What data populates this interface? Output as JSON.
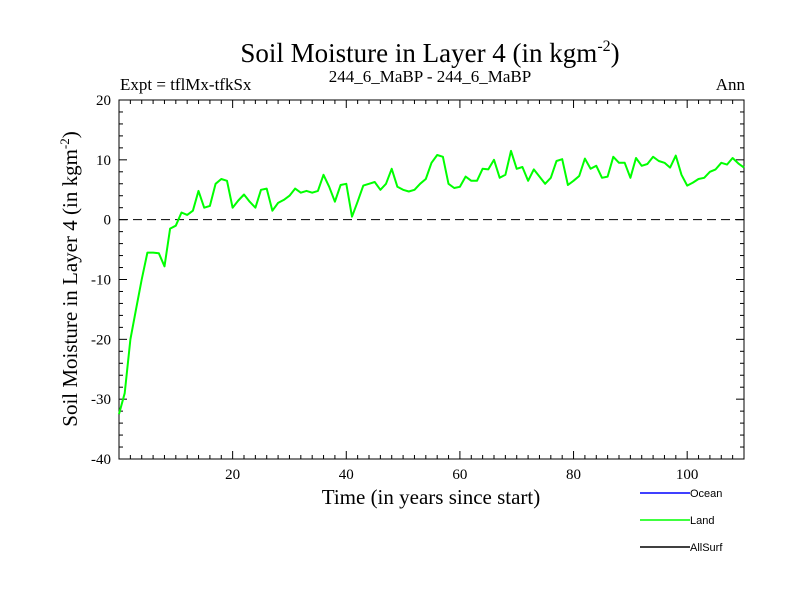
{
  "header": {
    "title_main": "Soil Moisture in Layer 4 (in kgm",
    "title_sup": "-2",
    "title_close": ")",
    "expt": "Expt = tflMx-tfkSx",
    "subtitle": "244_6_MaBP - 244_6_MaBP",
    "period": "Ann"
  },
  "axes": {
    "xlabel": "Time (in years since start)",
    "ylabel_main": "Soil Moisture in Layer 4 (in kgm",
    "ylabel_sup": "-2",
    "ylabel_close": ")"
  },
  "legend": {
    "ocean": "Ocean",
    "land": "Land",
    "allsurf": "AllSurf"
  },
  "colors": {
    "ocean": "#0000ff",
    "land": "#00ff00",
    "allsurf": "#000000"
  },
  "chart_data": {
    "type": "line",
    "title": "Soil Moisture in Layer 4 (in kgm-2)",
    "xlabel": "Time (in years since start)",
    "ylabel": "Soil Moisture in Layer 4 (in kgm-2)",
    "xlim": [
      0,
      110
    ],
    "ylim": [
      -40,
      20
    ],
    "xticks": [
      "20",
      "40",
      "60",
      "80",
      "100"
    ],
    "xtick_values": [
      20,
      40,
      60,
      80,
      100
    ],
    "yticks": [
      "20",
      "10",
      "0",
      "-10",
      "-20",
      "-30",
      "-40"
    ],
    "ytick_values": [
      20,
      10,
      0,
      -10,
      -20,
      -30,
      -40
    ],
    "reference_line": 0,
    "legend_position": "bottom-right, below plot",
    "series": [
      {
        "name": "Ocean",
        "values": []
      },
      {
        "name": "AllSurf",
        "values": []
      },
      {
        "name": "Land",
        "x": [
          0,
          1,
          2,
          3,
          4,
          5,
          6,
          7,
          8,
          9,
          10,
          11,
          12,
          13,
          14,
          15,
          16,
          17,
          18,
          19,
          20,
          21,
          22,
          23,
          24,
          25,
          26,
          27,
          28,
          29,
          30,
          31,
          32,
          33,
          34,
          35,
          36,
          37,
          38,
          39,
          40,
          41,
          42,
          43,
          44,
          45,
          46,
          47,
          48,
          49,
          50,
          51,
          52,
          53,
          54,
          55,
          56,
          57,
          58,
          59,
          60,
          61,
          62,
          63,
          64,
          65,
          66,
          67,
          68,
          69,
          70,
          71,
          72,
          73,
          74,
          75,
          76,
          77,
          78,
          79,
          80,
          81,
          82,
          83,
          84,
          85,
          86,
          87,
          88,
          89,
          90,
          91,
          92,
          93,
          94,
          95,
          96,
          97,
          98,
          99,
          100,
          101,
          102,
          103,
          104,
          105,
          106,
          107,
          108,
          109,
          110
        ],
        "values": [
          -32.5,
          -29,
          -20,
          -15,
          -10,
          -5.5,
          -5.5,
          -5.6,
          -7.8,
          -1.5,
          -1.0,
          1.2,
          0.8,
          1.5,
          4.8,
          2.0,
          2.3,
          6.0,
          6.8,
          6.5,
          2.0,
          3.2,
          4.2,
          3.0,
          2.0,
          5.0,
          5.2,
          1.5,
          2.8,
          3.3,
          4.0,
          5.2,
          4.5,
          4.8,
          4.5,
          4.8,
          7.5,
          5.5,
          3.0,
          5.8,
          6.0,
          0.5,
          3.0,
          5.7,
          6.0,
          6.3,
          5.0,
          6.0,
          8.5,
          5.5,
          5.0,
          4.7,
          5.0,
          6.0,
          6.8,
          9.5,
          10.8,
          10.5,
          6.0,
          5.3,
          5.5,
          7.2,
          6.5,
          6.5,
          8.5,
          8.4,
          10.0,
          7.0,
          7.5,
          11.5,
          8.5,
          8.8,
          6.5,
          8.4,
          7.2,
          6.0,
          7.0,
          9.8,
          10.1,
          5.8,
          6.5,
          7.3,
          10.2,
          8.5,
          9.0,
          7.0,
          7.2,
          10.5,
          9.5,
          9.5,
          7.0,
          10.3,
          9.0,
          9.3,
          10.5,
          9.8,
          9.5,
          8.7,
          10.7,
          7.5,
          5.7,
          6.2,
          6.8,
          7.0,
          8.0,
          8.4,
          9.5,
          9.2,
          10.3,
          9.4,
          8.7
        ]
      }
    ]
  }
}
